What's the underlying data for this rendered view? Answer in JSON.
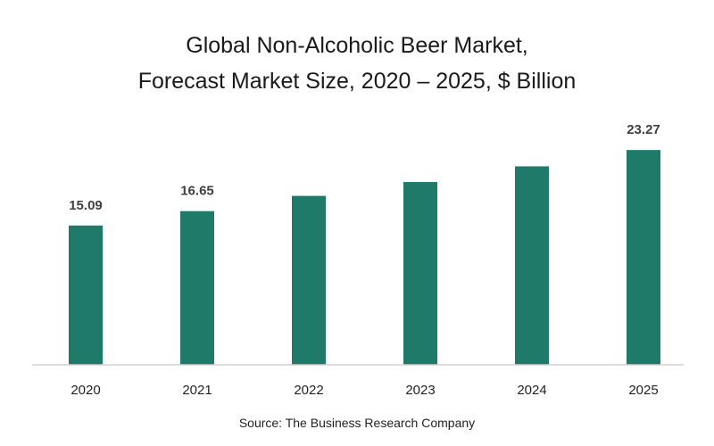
{
  "chart_data": {
    "type": "bar",
    "title_line1": "Global Non-Alcoholic Beer Market,",
    "title_line2": "Forecast Market Size, 2020 – 2025, $ Billion",
    "categories": [
      "2020",
      "2021",
      "2022",
      "2023",
      "2024",
      "2025"
    ],
    "values": [
      15.09,
      16.65,
      18.3,
      19.8,
      21.5,
      23.27
    ],
    "data_labels": [
      "15.09",
      "16.65",
      "",
      "",
      "",
      "23.27"
    ],
    "ylim": [
      0,
      25
    ],
    "bar_color": "#1f7a6a",
    "label_color": "#404040",
    "axis_color": "#d0d0d0",
    "grid": false,
    "legend": "none"
  },
  "source": "Source: The Business Research Company"
}
